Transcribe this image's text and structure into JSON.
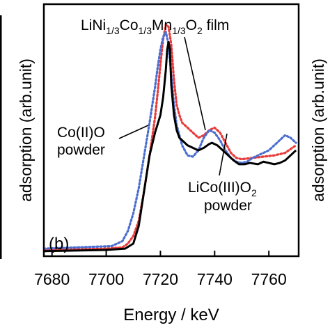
{
  "chart_data": {
    "type": "line",
    "panel_label": "(b)",
    "xlabel": "Energy / keV",
    "ylabel_left": "adsorption (arb.unit)",
    "ylabel_right": "adsorption (arb.unit)",
    "xlim": [
      7677,
      7771
    ],
    "ylim": [
      0,
      1.0
    ],
    "xticks": [
      7680,
      7700,
      7720,
      7740,
      7760
    ],
    "xtick_labels": [
      "7680",
      "7700",
      "7720",
      "7740",
      "7760"
    ],
    "grid": false,
    "legend": "none",
    "annotations": {
      "film": {
        "pre": "LiNi",
        "s1": "1/3",
        "mid1": "Co",
        "s2": "1/3",
        "mid2": "Mn",
        "s3": "1/3",
        "mid3": "O",
        "s4": "2",
        "post": " film"
      },
      "coo": {
        "line1": "Co(II)O",
        "line2": "powder"
      },
      "licoo2": {
        "line1_pre": "LiCo(III)O",
        "line1_sub": "2",
        "line2": "powder"
      }
    },
    "series": [
      {
        "color": "#000000",
        "style": "solid",
        "x": [
          7677,
          7700,
          7707,
          7710,
          7712,
          7714,
          7716,
          7718,
          7720,
          7721,
          7722,
          7722.5,
          7723,
          7723.5,
          7724,
          7725,
          7726,
          7727,
          7728,
          7730,
          7732,
          7734,
          7736,
          7738,
          7739,
          7741,
          7743,
          7745,
          7747,
          7749,
          7751,
          7753,
          7756,
          7758,
          7760,
          7762,
          7764,
          7766,
          7768,
          7770
        ],
        "y": [
          0.02,
          0.025,
          0.03,
          0.05,
          0.12,
          0.26,
          0.4,
          0.49,
          0.56,
          0.63,
          0.74,
          0.82,
          0.85,
          0.82,
          0.68,
          0.56,
          0.5,
          0.47,
          0.46,
          0.44,
          0.43,
          0.42,
          0.43,
          0.445,
          0.45,
          0.44,
          0.42,
          0.4,
          0.38,
          0.365,
          0.365,
          0.37,
          0.365,
          0.375,
          0.37,
          0.365,
          0.37,
          0.38,
          0.4,
          0.42
        ]
      },
      {
        "color": "#e83a3a",
        "style": "dotted",
        "x": [
          7677,
          7700,
          7706,
          7708,
          7710,
          7712,
          7714,
          7716,
          7718,
          7719,
          7720,
          7721,
          7722,
          7723,
          7724,
          7725,
          7726,
          7727,
          7728,
          7730,
          7732,
          7734,
          7736,
          7738,
          7740,
          7742,
          7744,
          7746,
          7748,
          7750,
          7754,
          7758,
          7762,
          7766,
          7770
        ],
        "y": [
          0.025,
          0.03,
          0.035,
          0.05,
          0.08,
          0.14,
          0.26,
          0.4,
          0.55,
          0.65,
          0.76,
          0.86,
          0.92,
          0.91,
          0.84,
          0.7,
          0.6,
          0.56,
          0.53,
          0.51,
          0.49,
          0.47,
          0.48,
          0.5,
          0.51,
          0.49,
          0.45,
          0.41,
          0.39,
          0.385,
          0.39,
          0.395,
          0.4,
          0.41,
          0.44
        ]
      },
      {
        "color": "#4b6ed0",
        "style": "dotted",
        "x": [
          7677,
          7702,
          7706,
          7708,
          7710,
          7712,
          7714,
          7716,
          7718,
          7719,
          7720,
          7721,
          7722,
          7723,
          7724,
          7725,
          7726,
          7728,
          7730,
          7732,
          7734,
          7736,
          7738,
          7740,
          7742,
          7744,
          7746,
          7748,
          7750,
          7752,
          7754,
          7756,
          7758,
          7760,
          7762,
          7764,
          7766,
          7768,
          7770
        ],
        "y": [
          0.03,
          0.04,
          0.06,
          0.1,
          0.17,
          0.27,
          0.4,
          0.53,
          0.67,
          0.75,
          0.82,
          0.87,
          0.89,
          0.84,
          0.72,
          0.6,
          0.52,
          0.44,
          0.4,
          0.395,
          0.42,
          0.47,
          0.5,
          0.49,
          0.46,
          0.42,
          0.39,
          0.375,
          0.37,
          0.375,
          0.39,
          0.4,
          0.41,
          0.42,
          0.44,
          0.46,
          0.48,
          0.47,
          0.45
        ]
      }
    ]
  }
}
